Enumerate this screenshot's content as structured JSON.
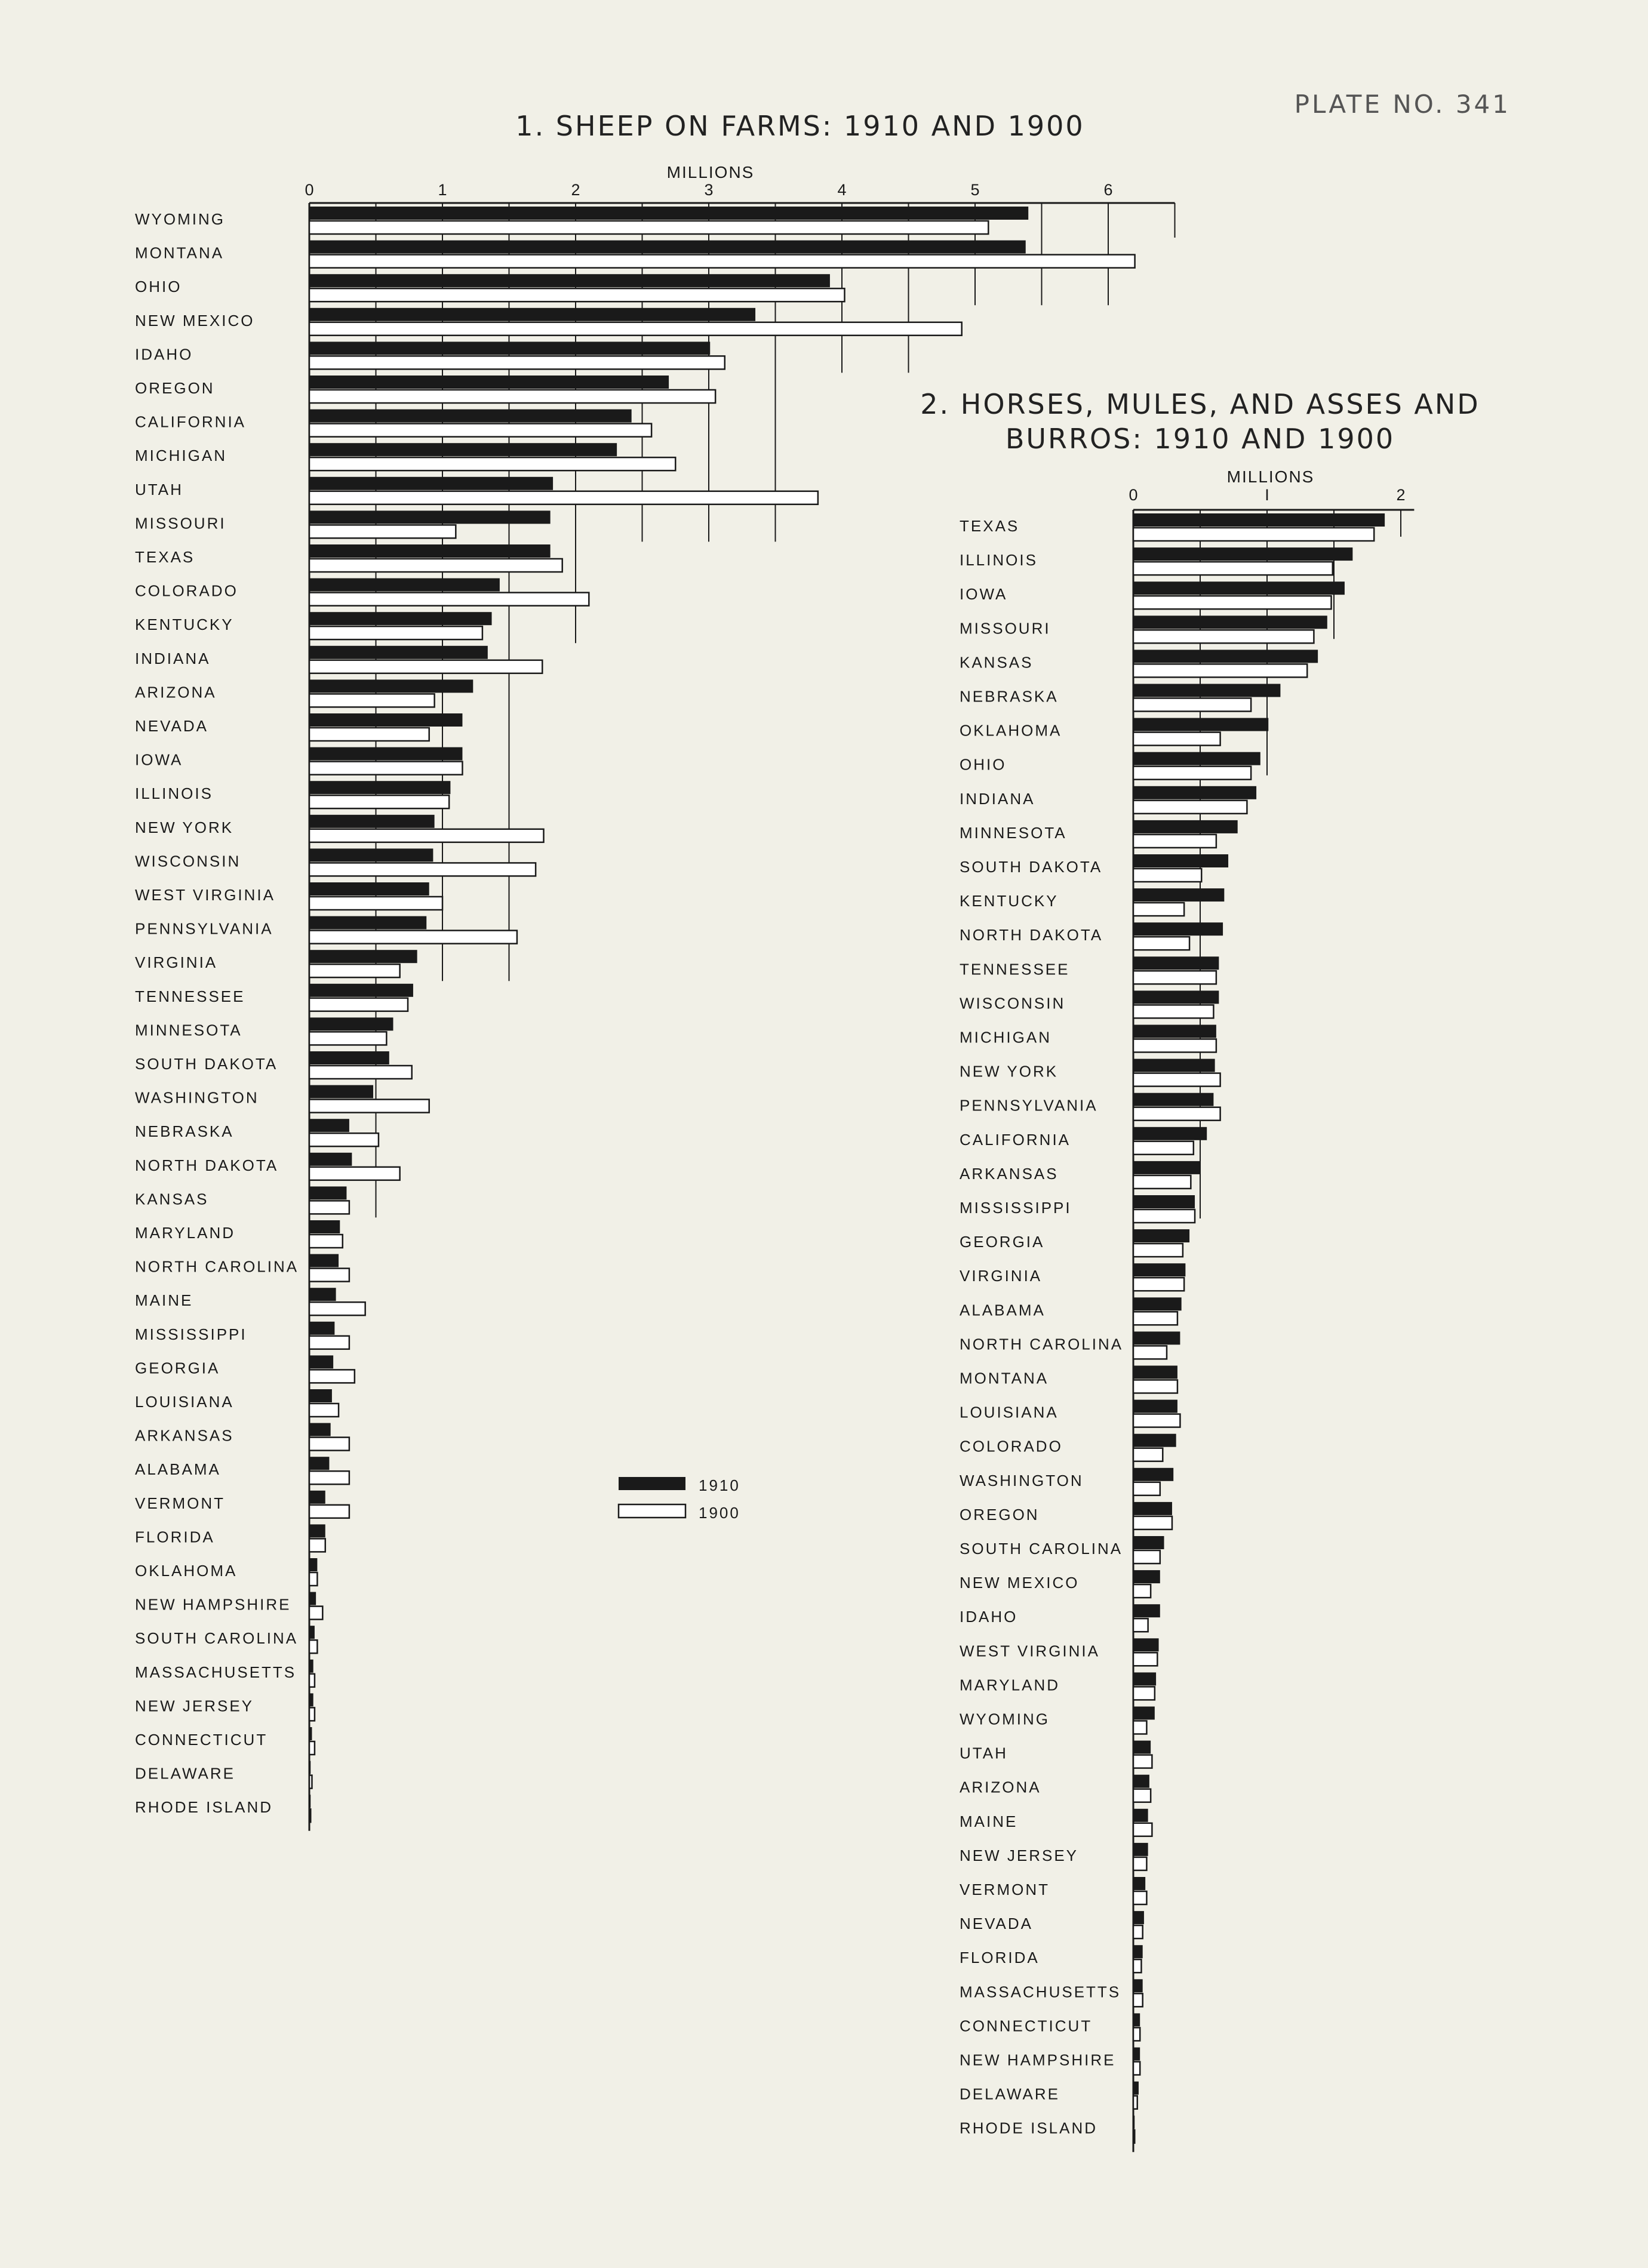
{
  "plate": "PLATE NO. 341",
  "legend": {
    "label_1910": "1910",
    "label_1900": "1900",
    "color_1910": "#1a1a1a",
    "color_1900": "#ffffff"
  },
  "chart_data": [
    {
      "type": "bar",
      "orientation": "horizontal",
      "title": "1. SHEEP ON FARMS: 1910 AND 1900",
      "unit_label": "MILLIONS",
      "ticks": [
        "0",
        "1",
        "2",
        "3",
        "4",
        "5",
        "6"
      ],
      "xlim": [
        0,
        6.5
      ],
      "categories": [
        "WYOMING",
        "MONTANA",
        "OHIO",
        "NEW MEXICO",
        "IDAHO",
        "OREGON",
        "CALIFORNIA",
        "MICHIGAN",
        "UTAH",
        "MISSOURI",
        "TEXAS",
        "COLORADO",
        "KENTUCKY",
        "INDIANA",
        "ARIZONA",
        "NEVADA",
        "IOWA",
        "ILLINOIS",
        "NEW YORK",
        "WISCONSIN",
        "WEST VIRGINIA",
        "PENNSYLVANIA",
        "VIRGINIA",
        "TENNESSEE",
        "MINNESOTA",
        "SOUTH DAKOTA",
        "WASHINGTON",
        "NEBRASKA",
        "NORTH DAKOTA",
        "KANSAS",
        "MARYLAND",
        "NORTH CAROLINA",
        "MAINE",
        "MISSISSIPPI",
        "GEORGIA",
        "LOUISIANA",
        "ARKANSAS",
        "ALABAMA",
        "VERMONT",
        "FLORIDA",
        "OKLAHOMA",
        "NEW HAMPSHIRE",
        "SOUTH CAROLINA",
        "MASSACHUSETTS",
        "NEW JERSEY",
        "CONNECTICUT",
        "DELAWARE",
        "RHODE ISLAND"
      ],
      "series": [
        {
          "name": "1910",
          "values": [
            5.4,
            5.38,
            3.91,
            3.35,
            3.01,
            2.7,
            2.42,
            2.31,
            1.83,
            1.81,
            1.81,
            1.43,
            1.37,
            1.34,
            1.23,
            1.15,
            1.15,
            1.06,
            0.94,
            0.93,
            0.9,
            0.88,
            0.81,
            0.78,
            0.63,
            0.6,
            0.48,
            0.3,
            0.32,
            0.28,
            0.23,
            0.22,
            0.2,
            0.19,
            0.18,
            0.17,
            0.16,
            0.15,
            0.12,
            0.12,
            0.06,
            0.05,
            0.04,
            0.03,
            0.03,
            0.02,
            0.01,
            0.01
          ]
        },
        {
          "name": "1900",
          "values": [
            5.1,
            6.2,
            4.02,
            4.9,
            3.12,
            3.05,
            2.57,
            2.75,
            3.82,
            1.1,
            1.9,
            2.1,
            1.3,
            1.75,
            0.94,
            0.9,
            1.15,
            1.05,
            1.76,
            1.7,
            1.0,
            1.56,
            0.68,
            0.74,
            0.58,
            0.77,
            0.9,
            0.52,
            0.68,
            0.3,
            0.25,
            0.3,
            0.42,
            0.3,
            0.34,
            0.22,
            0.3,
            0.3,
            0.3,
            0.12,
            0.06,
            0.1,
            0.06,
            0.04,
            0.04,
            0.04,
            0.02,
            0.01
          ]
        }
      ]
    },
    {
      "type": "bar",
      "orientation": "horizontal",
      "title": "2. HORSES, MULES, AND ASSES AND BURROS: 1910 AND 1900",
      "unit_label": "MILLIONS",
      "ticks": [
        "0",
        "I",
        "2"
      ],
      "xlim": [
        0,
        2.1
      ],
      "categories": [
        "TEXAS",
        "ILLINOIS",
        "IOWA",
        "MISSOURI",
        "KANSAS",
        "NEBRASKA",
        "OKLAHOMA",
        "OHIO",
        "INDIANA",
        "MINNESOTA",
        "SOUTH DAKOTA",
        "KENTUCKY",
        "NORTH DAKOTA",
        "TENNESSEE",
        "WISCONSIN",
        "MICHIGAN",
        "NEW YORK",
        "PENNSYLVANIA",
        "CALIFORNIA",
        "ARKANSAS",
        "MISSISSIPPI",
        "GEORGIA",
        "VIRGINIA",
        "ALABAMA",
        "NORTH CAROLINA",
        "MONTANA",
        "LOUISIANA",
        "COLORADO",
        "WASHINGTON",
        "OREGON",
        "SOUTH CAROLINA",
        "NEW MEXICO",
        "IDAHO",
        "WEST VIRGINIA",
        "MARYLAND",
        "WYOMING",
        "UTAH",
        "ARIZONA",
        "MAINE",
        "NEW JERSEY",
        "VERMONT",
        "NEVADA",
        "FLORIDA",
        "MASSACHUSETTS",
        "CONNECTICUT",
        "NEW HAMPSHIRE",
        "DELAWARE",
        "RHODE ISLAND"
      ],
      "series": [
        {
          "name": "1910",
          "values": [
            1.88,
            1.64,
            1.58,
            1.45,
            1.38,
            1.1,
            1.01,
            0.95,
            0.92,
            0.78,
            0.71,
            0.68,
            0.67,
            0.64,
            0.64,
            0.62,
            0.61,
            0.6,
            0.55,
            0.5,
            0.46,
            0.42,
            0.39,
            0.36,
            0.35,
            0.33,
            0.33,
            0.32,
            0.3,
            0.29,
            0.23,
            0.2,
            0.2,
            0.19,
            0.17,
            0.16,
            0.13,
            0.12,
            0.11,
            0.11,
            0.09,
            0.08,
            0.07,
            0.07,
            0.05,
            0.05,
            0.04,
            0.01
          ]
        },
        {
          "name": "1900",
          "values": [
            1.8,
            1.49,
            1.48,
            1.35,
            1.3,
            0.88,
            0.65,
            0.88,
            0.85,
            0.62,
            0.51,
            0.38,
            0.42,
            0.62,
            0.6,
            0.62,
            0.65,
            0.65,
            0.45,
            0.43,
            0.46,
            0.37,
            0.38,
            0.33,
            0.25,
            0.33,
            0.35,
            0.22,
            0.2,
            0.29,
            0.2,
            0.13,
            0.11,
            0.18,
            0.16,
            0.1,
            0.14,
            0.13,
            0.14,
            0.1,
            0.1,
            0.07,
            0.06,
            0.07,
            0.05,
            0.05,
            0.03,
            0.01
          ]
        }
      ]
    }
  ]
}
